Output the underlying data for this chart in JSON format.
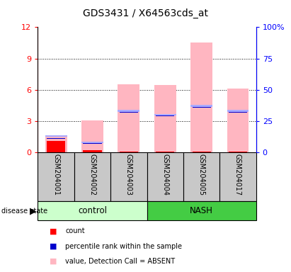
{
  "title": "GDS3431 / X64563cds_at",
  "samples": [
    "GSM204001",
    "GSM204002",
    "GSM204003",
    "GSM204004",
    "GSM204005",
    "GSM204017"
  ],
  "groups": [
    "control",
    "control",
    "control",
    "NASH",
    "NASH",
    "NASH"
  ],
  "value_absent": [
    1.6,
    3.05,
    6.55,
    6.45,
    10.55,
    6.1
  ],
  "rank_absent_pct": [
    13,
    8,
    33,
    30,
    37,
    33
  ],
  "count_val": [
    1.1,
    0.18,
    0.05,
    0.05,
    0.05,
    0.05
  ],
  "percentile_pct": [
    11,
    7,
    32,
    29,
    36,
    32
  ],
  "color_value_absent": "#FFB6C1",
  "color_rank_absent": "#AAAAFF",
  "color_count": "#FF0000",
  "color_percentile": "#0000CC",
  "color_control_light": "#CCFFCC",
  "color_nash_green": "#44CC44",
  "color_gray_bg": "#C8C8C8",
  "ylim_left": [
    0,
    12
  ],
  "ylim_right": [
    0,
    100
  ],
  "yticks_left": [
    0,
    3,
    6,
    9,
    12
  ],
  "yticks_right": [
    0,
    25,
    50,
    75,
    100
  ],
  "ytick_labels_right": [
    "0",
    "25",
    "50",
    "75",
    "100%"
  ],
  "bar_width": 0.6,
  "figsize": [
    4.11,
    3.84
  ],
  "dpi": 100
}
